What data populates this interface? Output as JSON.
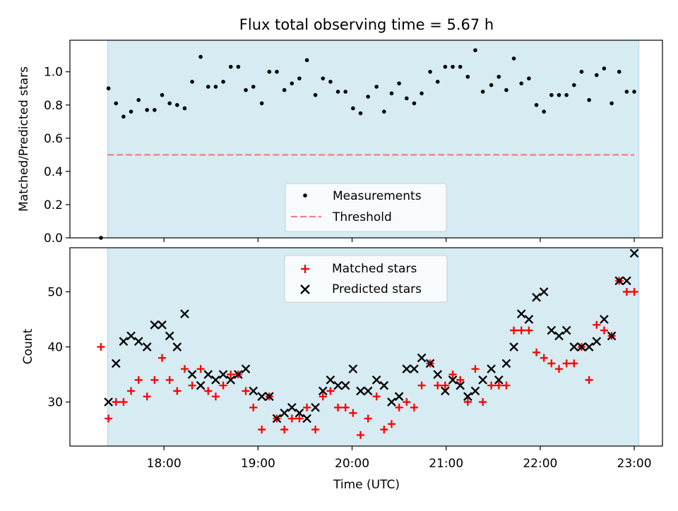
{
  "chart_data": {
    "title": "Flux total observing time = 5.67 h",
    "xlabel": "Time (UTC)",
    "x_unit": "hours (UTC)",
    "xlim": [
      17.0,
      23.3
    ],
    "xticks": [
      {
        "value": 18,
        "label": "18:00"
      },
      {
        "value": 19,
        "label": "19:00"
      },
      {
        "value": 20,
        "label": "20:00"
      },
      {
        "value": 21,
        "label": "21:00"
      },
      {
        "value": 22,
        "label": "22:00"
      },
      {
        "value": 23,
        "label": "23:00"
      }
    ],
    "observing_window": [
      17.4,
      23.05
    ],
    "panels": [
      {
        "type": "scatter",
        "ylabel": "Matched/Predicted stars",
        "ylim": [
          0,
          1.19
        ],
        "yticks": [
          "0.0",
          "0.2",
          "0.4",
          "0.6",
          "0.8",
          "1.0"
        ],
        "legend_position": "lower-center",
        "series": [
          {
            "name": "Measurements",
            "marker": "dot",
            "color": "#000000",
            "x": [
              17.33,
              17.41,
              17.49,
              17.57,
              17.65,
              17.73,
              17.82,
              17.9,
              17.98,
              18.06,
              18.14,
              18.22,
              18.3,
              18.39,
              18.47,
              18.55,
              18.63,
              18.71,
              18.79,
              18.87,
              18.95,
              19.04,
              19.12,
              19.2,
              19.28,
              19.36,
              19.44,
              19.52,
              19.61,
              19.69,
              19.77,
              19.85,
              19.93,
              20.01,
              20.09,
              20.17,
              20.26,
              20.34,
              20.42,
              20.5,
              20.58,
              20.66,
              20.74,
              20.83,
              20.91,
              20.99,
              21.07,
              21.15,
              21.23,
              21.31,
              21.39,
              21.48,
              21.56,
              21.64,
              21.72,
              21.8,
              21.88,
              21.96,
              22.04,
              22.12,
              22.2,
              22.28,
              22.36,
              22.44,
              22.52,
              22.6,
              22.68,
              22.76,
              22.84,
              22.92,
              23.0
            ],
            "y": [
              0.0,
              0.9,
              0.81,
              0.73,
              0.76,
              0.83,
              0.77,
              0.77,
              0.86,
              0.81,
              0.8,
              0.78,
              0.94,
              1.09,
              0.91,
              0.91,
              0.94,
              1.03,
              1.03,
              0.89,
              0.91,
              0.81,
              1.0,
              1.0,
              0.89,
              0.93,
              0.96,
              1.07,
              0.86,
              0.96,
              0.94,
              0.88,
              0.88,
              0.78,
              0.75,
              0.85,
              0.91,
              0.76,
              0.87,
              0.93,
              0.84,
              0.81,
              0.87,
              1.0,
              0.94,
              1.03,
              1.03,
              1.03,
              0.97,
              1.13,
              0.88,
              0.92,
              0.97,
              0.89,
              1.08,
              0.93,
              0.96,
              0.8,
              0.76,
              0.86,
              0.86,
              0.86,
              0.92,
              1.0,
              0.83,
              0.98,
              1.02,
              0.81,
              1.0,
              0.88,
              0.88
            ]
          },
          {
            "name": "Threshold",
            "marker": "dashed-line",
            "color": "#f08080",
            "x": [
              17.4,
              23.0
            ],
            "y": [
              0.5,
              0.5
            ]
          }
        ]
      },
      {
        "type": "scatter",
        "ylabel": "Count",
        "ylim": [
          22,
          58
        ],
        "yticks": [
          "30",
          "40",
          "50"
        ],
        "legend_position": "upper-center",
        "series": [
          {
            "name": "Matched stars",
            "marker": "plus",
            "color": "#ff0000",
            "x": [
              17.33,
              17.41,
              17.49,
              17.57,
              17.65,
              17.73,
              17.82,
              17.9,
              17.98,
              18.06,
              18.14,
              18.22,
              18.3,
              18.39,
              18.47,
              18.55,
              18.63,
              18.71,
              18.79,
              18.87,
              18.95,
              19.04,
              19.12,
              19.2,
              19.28,
              19.36,
              19.44,
              19.52,
              19.61,
              19.69,
              19.77,
              19.85,
              19.93,
              20.01,
              20.09,
              20.17,
              20.26,
              20.34,
              20.42,
              20.5,
              20.58,
              20.66,
              20.74,
              20.83,
              20.91,
              20.99,
              21.07,
              21.15,
              21.23,
              21.31,
              21.39,
              21.48,
              21.56,
              21.64,
              21.72,
              21.8,
              21.88,
              21.96,
              22.04,
              22.12,
              22.2,
              22.28,
              22.36,
              22.44,
              22.52,
              22.6,
              22.68,
              22.76,
              22.84,
              22.92,
              23.0
            ],
            "y": [
              40,
              27,
              30,
              30,
              32,
              34,
              31,
              34,
              38,
              34,
              32,
              36,
              33,
              36,
              32,
              31,
              33,
              35,
              35,
              32,
              29,
              25,
              31,
              27,
              25,
              27,
              27,
              29,
              25,
              31,
              32,
              29,
              29,
              28,
              24,
              27,
              31,
              25,
              26,
              29,
              30,
              29,
              33,
              37,
              33,
              33,
              35,
              34,
              30,
              36,
              30,
              33,
              33,
              33,
              43,
              43,
              43,
              39,
              38,
              37,
              36,
              37,
              37,
              40,
              34,
              44,
              43,
              42,
              52,
              50,
              50
            ]
          },
          {
            "name": "Predicted stars",
            "marker": "x",
            "color": "#000000",
            "x": [
              17.41,
              17.49,
              17.57,
              17.65,
              17.73,
              17.82,
              17.9,
              17.98,
              18.06,
              18.14,
              18.22,
              18.3,
              18.39,
              18.47,
              18.55,
              18.63,
              18.71,
              18.79,
              18.87,
              18.95,
              19.04,
              19.12,
              19.2,
              19.28,
              19.36,
              19.44,
              19.52,
              19.61,
              19.69,
              19.77,
              19.85,
              19.93,
              20.01,
              20.09,
              20.17,
              20.26,
              20.34,
              20.42,
              20.5,
              20.58,
              20.66,
              20.74,
              20.83,
              20.91,
              20.99,
              21.07,
              21.15,
              21.23,
              21.31,
              21.39,
              21.48,
              21.56,
              21.64,
              21.72,
              21.8,
              21.88,
              21.96,
              22.04,
              22.12,
              22.2,
              22.28,
              22.36,
              22.44,
              22.52,
              22.6,
              22.68,
              22.76,
              22.84,
              22.92,
              23.0
            ],
            "y": [
              30,
              37,
              41,
              42,
              41,
              40,
              44,
              44,
              42,
              40,
              46,
              35,
              33,
              35,
              34,
              35,
              34,
              35,
              36,
              32,
              31,
              31,
              27,
              28,
              29,
              28,
              27,
              29,
              32,
              34,
              33,
              33,
              36,
              32,
              32,
              34,
              33,
              30,
              31,
              36,
              36,
              38,
              37,
              35,
              32,
              34,
              33,
              31,
              32,
              34,
              36,
              34,
              37,
              40,
              46,
              45,
              49,
              50,
              43,
              42,
              43,
              40,
              40,
              40,
              41,
              45,
              42,
              52,
              52,
              57
            ]
          }
        ]
      }
    ]
  }
}
